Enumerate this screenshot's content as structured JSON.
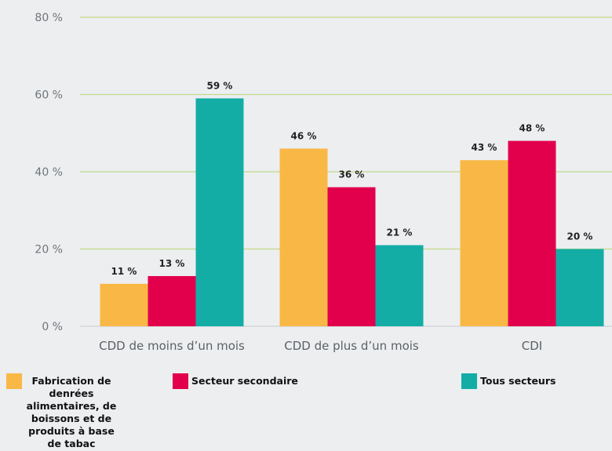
{
  "chart_data": {
    "type": "bar",
    "categories": [
      "CDD de moins d’un mois",
      "CDD de plus d’un mois",
      "CDI"
    ],
    "series": [
      {
        "name": "Fabrication de denrées alimentaires, de boissons et de produits à base de tabac",
        "values": [
          11,
          46,
          43
        ],
        "labels": [
          "11 %",
          "46 %",
          "43 %"
        ],
        "color": "#f9b846"
      },
      {
        "name": "Secteur secondaire",
        "values": [
          13,
          36,
          48
        ],
        "labels": [
          "13 %",
          "36 %",
          "48 %"
        ],
        "color": "#e2004d"
      },
      {
        "name": "Tous secteurs",
        "values": [
          59,
          21,
          20
        ],
        "labels": [
          "59 %",
          "21 %",
          "20 %"
        ],
        "color": "#13ada6"
      }
    ],
    "ylim": [
      0,
      80
    ],
    "yticks": [
      0,
      20,
      40,
      60,
      80
    ],
    "ytick_labels": [
      "0 %",
      "20 %",
      "40 %",
      "60 %",
      "80 %"
    ],
    "grid": true,
    "gridline_color": "#c3d98a",
    "legend_position": "bottom",
    "title": "",
    "xlabel": "",
    "ylabel": ""
  }
}
